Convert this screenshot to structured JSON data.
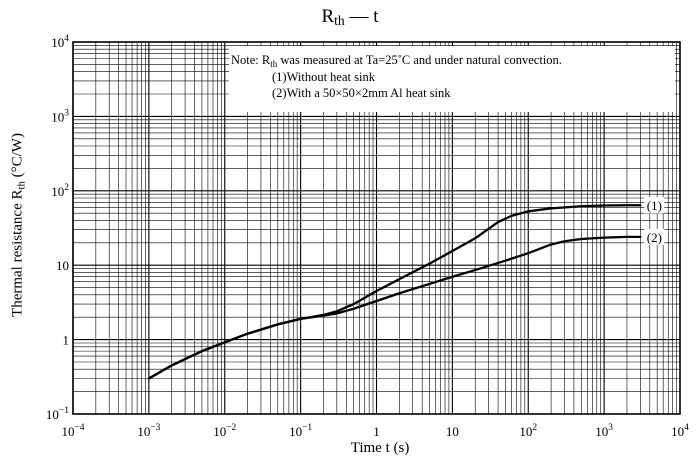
{
  "chart_data": {
    "type": "line",
    "title_main": "R",
    "title_sub": "th",
    "title_rest": " — t",
    "xlabel": "Time  t  (s)",
    "ylabel_main": "Thermal resistance  R",
    "ylabel_sub": "th",
    "ylabel_unit": "  (°C/W)",
    "x_scale": "log",
    "y_scale": "log",
    "xlim": [
      0.0001,
      10000
    ],
    "ylim": [
      0.1,
      10000
    ],
    "grid": true,
    "x_ticks": [
      {
        "base": "10",
        "exp": "−4"
      },
      {
        "base": "10",
        "exp": "−3"
      },
      {
        "base": "10",
        "exp": "−2"
      },
      {
        "base": "10",
        "exp": "−1"
      },
      {
        "base": "1",
        "exp": ""
      },
      {
        "base": "10",
        "exp": ""
      },
      {
        "base": "10",
        "exp": "2"
      },
      {
        "base": "10",
        "exp": "3"
      },
      {
        "base": "10",
        "exp": "4"
      }
    ],
    "y_ticks": [
      {
        "base": "10",
        "exp": "−1"
      },
      {
        "base": "1",
        "exp": ""
      },
      {
        "base": "10",
        "exp": ""
      },
      {
        "base": "10",
        "exp": "2"
      },
      {
        "base": "10",
        "exp": "3"
      },
      {
        "base": "10",
        "exp": "4"
      }
    ],
    "note": {
      "line1_pre": "Note: R",
      "line1_sub": "th",
      "line1_post": " was measured at Ta=25˚C and under natural convection.",
      "line2": "(1)Without heat sink",
      "line3": "(2)With a 50×50×2mm Al heat sink"
    },
    "series": [
      {
        "curve_label": "(1)",
        "x": [
          0.001,
          0.002,
          0.005,
          0.01,
          0.02,
          0.05,
          0.1,
          0.2,
          0.3,
          0.5,
          1,
          2,
          5,
          10,
          20,
          40,
          60,
          100,
          200,
          500,
          1000,
          2000,
          3000
        ],
        "y": [
          0.3,
          0.45,
          0.7,
          0.92,
          1.2,
          1.6,
          1.9,
          2.15,
          2.4,
          3.0,
          4.5,
          6.5,
          10.5,
          15.5,
          23,
          38,
          46,
          53,
          58,
          62,
          63.5,
          64,
          64
        ]
      },
      {
        "curve_label": "(2)",
        "x": [
          0.001,
          0.002,
          0.005,
          0.01,
          0.02,
          0.05,
          0.1,
          0.2,
          0.3,
          0.5,
          1,
          2,
          5,
          10,
          20,
          50,
          100,
          200,
          300,
          500,
          1000,
          2000,
          3000
        ],
        "y": [
          0.3,
          0.45,
          0.7,
          0.92,
          1.2,
          1.6,
          1.9,
          2.1,
          2.25,
          2.6,
          3.3,
          4.2,
          5.6,
          7.0,
          8.6,
          11.5,
          14.5,
          19,
          21,
          22.5,
          23.5,
          24,
          24
        ]
      }
    ]
  }
}
